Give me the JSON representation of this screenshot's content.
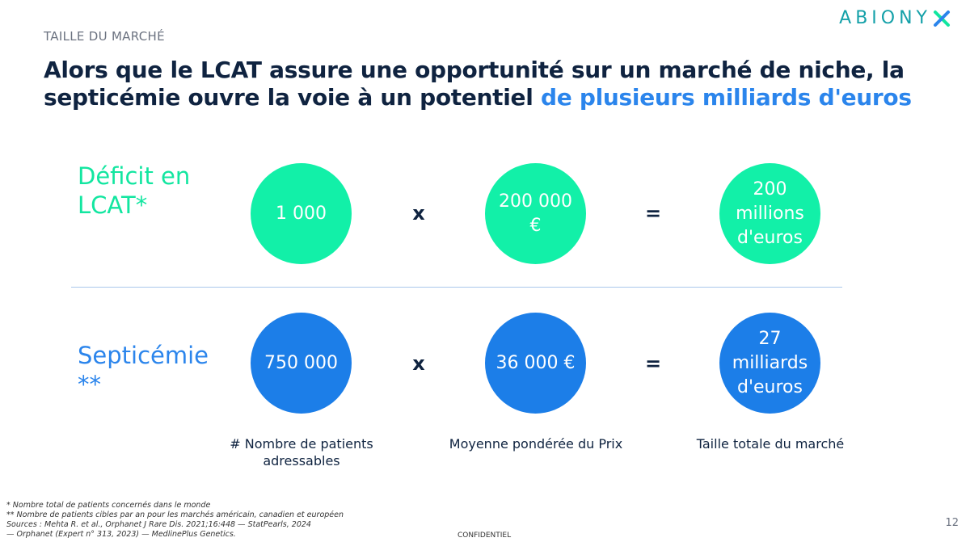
{
  "slide": {
    "section_label": "TAILLE DU MARCHÉ",
    "logo_text": "ABIONY",
    "headline_part1": "Alors que le LCAT assure une opportunité sur un marché de niche, la septicémie ouvre la voie à un potentiel ",
    "headline_accent": "de plusieurs milliards d'euros",
    "page_number": "12",
    "confidential": "CONFIDENTIEL"
  },
  "rows": {
    "lcat": {
      "label": "Déficit en LCAT*",
      "patients": "1 000",
      "multiply": "x",
      "price": "200 000 €",
      "equals": "=",
      "market": "200 millions d'euros"
    },
    "septicemia": {
      "label": "Septicémie **",
      "patients": "750 000",
      "multiply": "x",
      "price": "36 000 €",
      "equals": "=",
      "market": "27 milliards d'euros"
    }
  },
  "captions": {
    "patients": "# Nombre de patients adressables",
    "price": "Moyenne pondérée du Prix",
    "market": "Taille totale du marché"
  },
  "footnotes": {
    "note1": "* Nombre total de patients concernés dans le monde",
    "note2": "** Nombre de patients cibles par an pour les marchés américain, canadien et européen",
    "sources1": "Sources : Mehta R. et al., Orphanet J Rare Dis. 2021;16:448 — StatPearls, 2024",
    "sources2": "— Orphanet (Expert n° 313, 2023) — MedlinePlus Genetics."
  },
  "colors": {
    "navy": "#0f2340",
    "accent_blue": "#2b85ec",
    "green": "#12f0a8",
    "blue_circle": "#1c7ee8",
    "logo_teal": "#15a1a9"
  }
}
